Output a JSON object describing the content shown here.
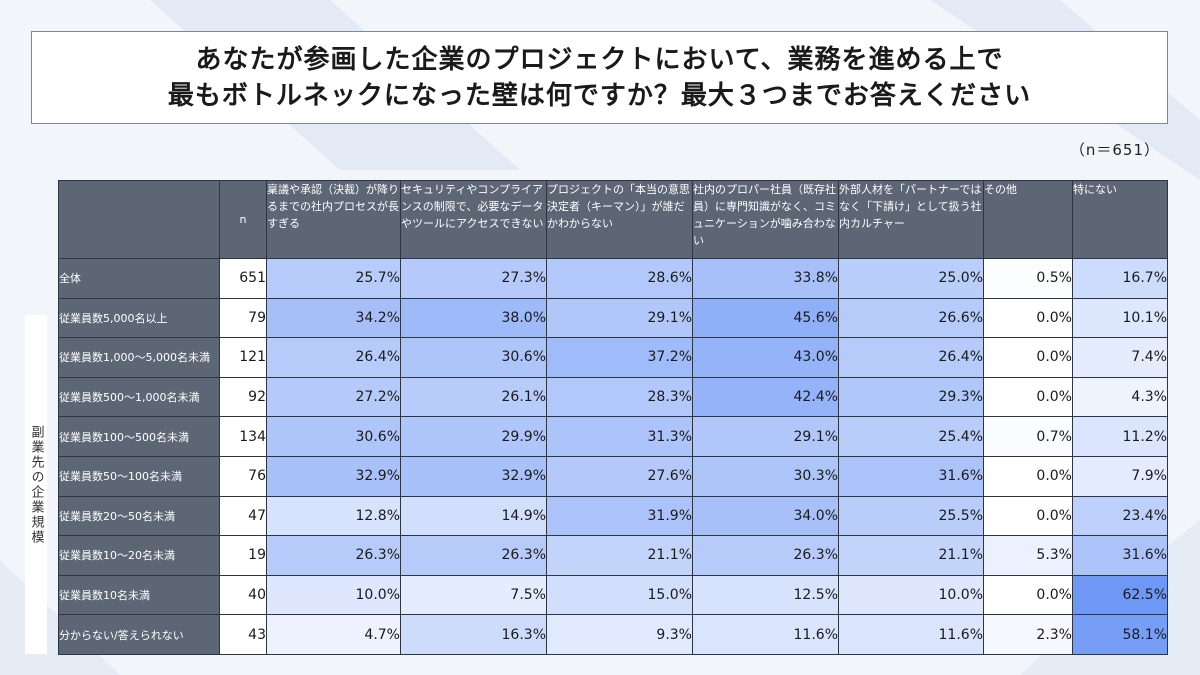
{
  "title_lines": [
    "あなたが参画した企業のプロジェクトにおいて、業務を進める上で",
    "最もボトルネックになった壁は何ですか？最大３つまでお答えください"
  ],
  "sample_size": "（n＝651）",
  "side_label": "副業先の企業規模",
  "colors": {
    "header_bg": "#5c6675",
    "heat_low": "#ffffff",
    "heat_high": "#6f98f6"
  },
  "chart_data": {
    "type": "table",
    "n_header": "n",
    "columns": [
      "稟議や承認（決裁）が降りるまでの社内プロセスが長すぎる",
      "セキュリティやコンプライアンスの制限で、必要なデータやツールにアクセスできない",
      "プロジェクトの「本当の意思決定者（キーマン）」が誰だかわからない",
      "社内のプロパー社員（既存社員）に専門知識がなく、コミュニケーションが噛み合わない",
      "外部人材を「パートナーではなく「下請け」として扱う社内カルチャー",
      "その他",
      "特にない"
    ],
    "rows": [
      {
        "label": "全体",
        "n": "651",
        "values": [
          "25.7%",
          "27.3%",
          "28.6%",
          "33.8%",
          "25.0%",
          "0.5%",
          "16.7%"
        ]
      },
      {
        "label": "従業員数5,000名以上",
        "n": "79",
        "values": [
          "34.2%",
          "38.0%",
          "29.1%",
          "45.6%",
          "26.6%",
          "0.0%",
          "10.1%"
        ]
      },
      {
        "label": "従業員数1,000～5,000名未満",
        "n": "121",
        "values": [
          "26.4%",
          "30.6%",
          "37.2%",
          "43.0%",
          "26.4%",
          "0.0%",
          "7.4%"
        ]
      },
      {
        "label": "従業員数500～1,000名未満",
        "n": "92",
        "values": [
          "27.2%",
          "26.1%",
          "28.3%",
          "42.4%",
          "29.3%",
          "0.0%",
          "4.3%"
        ]
      },
      {
        "label": "従業員数100～500名未満",
        "n": "134",
        "values": [
          "30.6%",
          "29.9%",
          "31.3%",
          "29.1%",
          "25.4%",
          "0.7%",
          "11.2%"
        ]
      },
      {
        "label": "従業員数50～100名未満",
        "n": "76",
        "values": [
          "32.9%",
          "32.9%",
          "27.6%",
          "30.3%",
          "31.6%",
          "0.0%",
          "7.9%"
        ]
      },
      {
        "label": "従業員数20～50名未満",
        "n": "47",
        "values": [
          "12.8%",
          "14.9%",
          "31.9%",
          "34.0%",
          "25.5%",
          "0.0%",
          "23.4%"
        ]
      },
      {
        "label": "従業員数10～20名未満",
        "n": "19",
        "values": [
          "26.3%",
          "26.3%",
          "21.1%",
          "26.3%",
          "21.1%",
          "5.3%",
          "31.6%"
        ]
      },
      {
        "label": "従業員数10名未満",
        "n": "40",
        "values": [
          "10.0%",
          "7.5%",
          "15.0%",
          "12.5%",
          "10.0%",
          "0.0%",
          "62.5%"
        ]
      },
      {
        "label": "分からない/答えられない",
        "n": "43",
        "values": [
          "4.7%",
          "16.3%",
          "9.3%",
          "11.6%",
          "11.6%",
          "2.3%",
          "58.1%"
        ]
      }
    ]
  }
}
